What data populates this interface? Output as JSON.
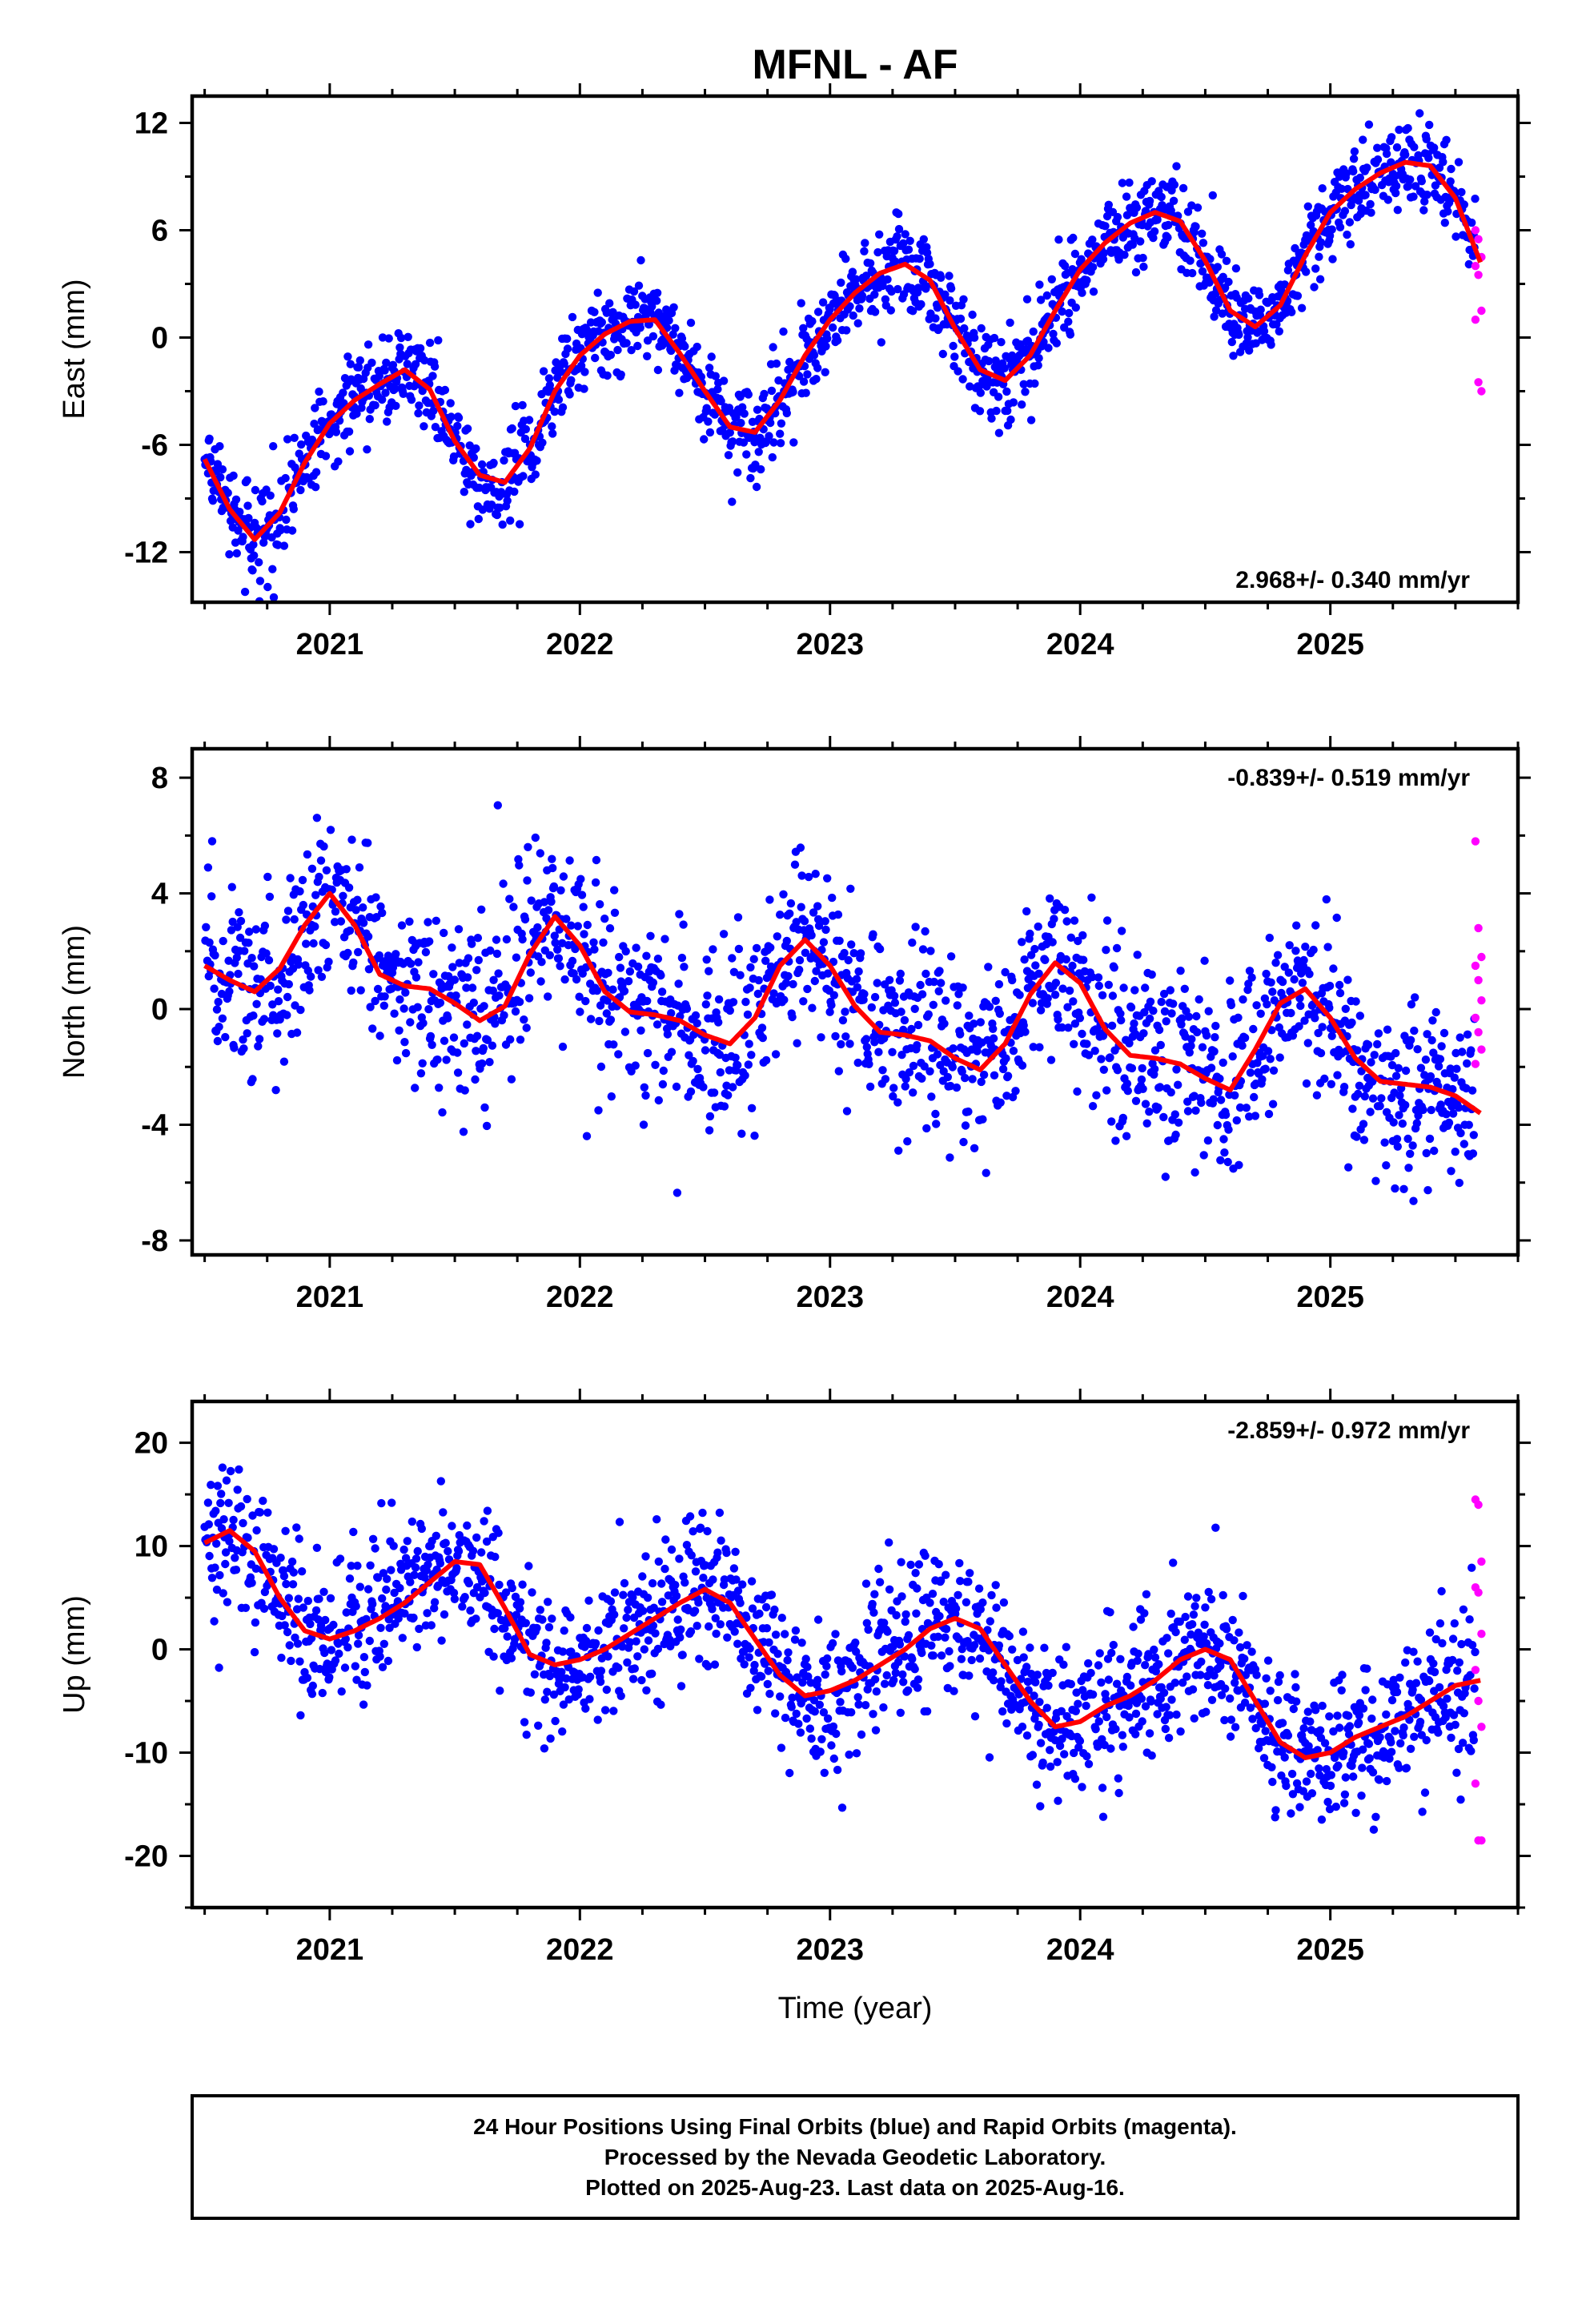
{
  "title": "MFNL - AF",
  "xlabel": "Time (year)",
  "caption": {
    "line1": "24 Hour Positions Using Final Orbits (blue) and Rapid Orbits (magenta).",
    "line2": "Processed by the Nevada Geodetic Laboratory.",
    "line3": "Plotted on 2025-Aug-23. Last data on 2025-Aug-16."
  },
  "colors": {
    "final": "#0000ff",
    "rapid": "#ff00ff",
    "model": "#ff0000",
    "frame": "#000000"
  },
  "chart_data": [
    {
      "type": "scatter",
      "ylabel": "East (mm)",
      "rate": "2.968+/- 0.340 mm/yr",
      "rate_position": "bottom-right",
      "xlim": [
        2020.45,
        2025.75
      ],
      "ylim": [
        -14.8,
        13.5
      ],
      "xticks": [
        2021,
        2022,
        2023,
        2024,
        2025
      ],
      "xtick_labels": [
        "2021",
        "2022",
        "2023",
        "2024",
        "2025"
      ],
      "yticks": [
        -12,
        -6,
        0,
        6,
        12
      ],
      "ytick_labels": [
        "-12",
        "-6",
        "0",
        "6",
        "12"
      ],
      "model_x": [
        2020.5,
        2020.6,
        2020.7,
        2020.8,
        2020.9,
        2021.0,
        2021.1,
        2021.2,
        2021.3,
        2021.4,
        2021.5,
        2021.6,
        2021.7,
        2021.8,
        2021.9,
        2022.0,
        2022.1,
        2022.2,
        2022.3,
        2022.4,
        2022.5,
        2022.6,
        2022.7,
        2022.8,
        2022.9,
        2023.0,
        2023.1,
        2023.2,
        2023.3,
        2023.4,
        2023.5,
        2023.6,
        2023.7,
        2023.8,
        2023.9,
        2024.0,
        2024.1,
        2024.2,
        2024.3,
        2024.4,
        2024.5,
        2024.6,
        2024.7,
        2024.8,
        2024.9,
        2025.0,
        2025.1,
        2025.2,
        2025.3,
        2025.4,
        2025.5,
        2025.6
      ],
      "model_y": [
        -6.8,
        -9.6,
        -11.3,
        -9.8,
        -7.0,
        -4.8,
        -3.5,
        -2.6,
        -1.8,
        -2.9,
        -5.8,
        -7.7,
        -8.1,
        -6.2,
        -3.0,
        -1.0,
        0.2,
        0.9,
        1.0,
        -0.9,
        -3.0,
        -5.0,
        -5.3,
        -3.5,
        -1.0,
        1.0,
        2.5,
        3.6,
        4.1,
        3.2,
        0.5,
        -1.8,
        -2.4,
        -1.0,
        1.5,
        3.8,
        5.3,
        6.4,
        7.0,
        6.5,
        4.3,
        1.5,
        0.6,
        1.8,
        4.6,
        7.0,
        8.3,
        9.2,
        9.8,
        9.6,
        7.8,
        4.2
      ],
      "points": "final orbits (blue) and rapid orbits (magenta), daily samples"
    },
    {
      "type": "scatter",
      "ylabel": "North (mm)",
      "rate": "-0.839+/- 0.519 mm/yr",
      "rate_position": "top-right",
      "xlim": [
        2020.45,
        2025.75
      ],
      "ylim": [
        -8.5,
        9.0
      ],
      "xticks": [
        2021,
        2022,
        2023,
        2024,
        2025
      ],
      "xtick_labels": [
        "2021",
        "2022",
        "2023",
        "2024",
        "2025"
      ],
      "yticks": [
        -8,
        -4,
        0,
        4,
        8
      ],
      "ytick_labels": [
        "-8",
        "-4",
        "0",
        "4",
        "8"
      ],
      "model_x": [
        2020.5,
        2020.6,
        2020.7,
        2020.8,
        2020.9,
        2021.0,
        2021.1,
        2021.2,
        2021.3,
        2021.4,
        2021.5,
        2021.6,
        2021.7,
        2021.8,
        2021.9,
        2022.0,
        2022.1,
        2022.2,
        2022.3,
        2022.4,
        2022.5,
        2022.6,
        2022.7,
        2022.8,
        2022.9,
        2023.0,
        2023.1,
        2023.2,
        2023.3,
        2023.4,
        2023.5,
        2023.6,
        2023.7,
        2023.8,
        2023.9,
        2024.0,
        2024.1,
        2024.2,
        2024.3,
        2024.4,
        2024.5,
        2024.6,
        2024.7,
        2024.8,
        2024.9,
        2025.0,
        2025.1,
        2025.2,
        2025.3,
        2025.4,
        2025.5,
        2025.6
      ],
      "model_y": [
        1.5,
        1.0,
        0.6,
        1.4,
        2.9,
        4.0,
        2.9,
        1.2,
        0.8,
        0.7,
        0.2,
        -0.4,
        0.1,
        1.9,
        3.2,
        2.2,
        0.6,
        -0.1,
        -0.2,
        -0.4,
        -0.9,
        -1.2,
        -0.3,
        1.5,
        2.4,
        1.5,
        0.1,
        -0.8,
        -0.9,
        -1.1,
        -1.7,
        -2.1,
        -1.2,
        0.5,
        1.6,
        0.9,
        -0.7,
        -1.6,
        -1.7,
        -1.9,
        -2.4,
        -2.8,
        -1.4,
        0.2,
        0.7,
        -0.3,
        -1.7,
        -2.5,
        -2.6,
        -2.7,
        -3.0,
        -3.6
      ],
      "points": "final orbits (blue) and rapid orbits (magenta), daily samples"
    },
    {
      "type": "scatter",
      "ylabel": "Up (mm)",
      "rate": "-2.859+/- 0.972 mm/yr",
      "rate_position": "top-right",
      "xlim": [
        2020.45,
        2025.75
      ],
      "ylim": [
        -25.0,
        24.0
      ],
      "xticks": [
        2021,
        2022,
        2023,
        2024,
        2025
      ],
      "xtick_labels": [
        "2021",
        "2022",
        "2023",
        "2024",
        "2025"
      ],
      "yticks": [
        -20,
        -10,
        0,
        10,
        20
      ],
      "ytick_labels": [
        "-20",
        "-10",
        "0",
        "10",
        "20"
      ],
      "model_x": [
        2020.5,
        2020.6,
        2020.7,
        2020.8,
        2020.9,
        2021.0,
        2021.1,
        2021.2,
        2021.3,
        2021.4,
        2021.5,
        2021.6,
        2021.7,
        2021.8,
        2021.9,
        2022.0,
        2022.1,
        2022.2,
        2022.3,
        2022.4,
        2022.5,
        2022.6,
        2022.7,
        2022.8,
        2022.9,
        2023.0,
        2023.1,
        2023.2,
        2023.3,
        2023.4,
        2023.5,
        2023.6,
        2023.7,
        2023.8,
        2023.9,
        2024.0,
        2024.1,
        2024.2,
        2024.3,
        2024.4,
        2024.5,
        2024.6,
        2024.7,
        2024.8,
        2024.9,
        2025.0,
        2025.1,
        2025.2,
        2025.3,
        2025.4,
        2025.5,
        2025.6
      ],
      "model_y": [
        10.3,
        11.5,
        9.5,
        5.0,
        1.8,
        1.0,
        1.8,
        3.0,
        4.5,
        6.5,
        8.5,
        8.2,
        4.0,
        -0.5,
        -1.5,
        -1.0,
        0.0,
        1.5,
        3.0,
        4.5,
        5.8,
        4.5,
        1.0,
        -2.5,
        -4.5,
        -4.0,
        -3.0,
        -1.5,
        0.0,
        2.0,
        3.0,
        2.0,
        -1.5,
        -5.0,
        -7.5,
        -7.0,
        -5.5,
        -4.5,
        -3.0,
        -1.0,
        0.0,
        -1.0,
        -5.0,
        -9.0,
        -10.5,
        -10.0,
        -8.5,
        -7.5,
        -6.5,
        -5.0,
        -3.5,
        -3.0
      ],
      "points": "final orbits (blue) and rapid orbits (magenta), daily samples"
    }
  ]
}
